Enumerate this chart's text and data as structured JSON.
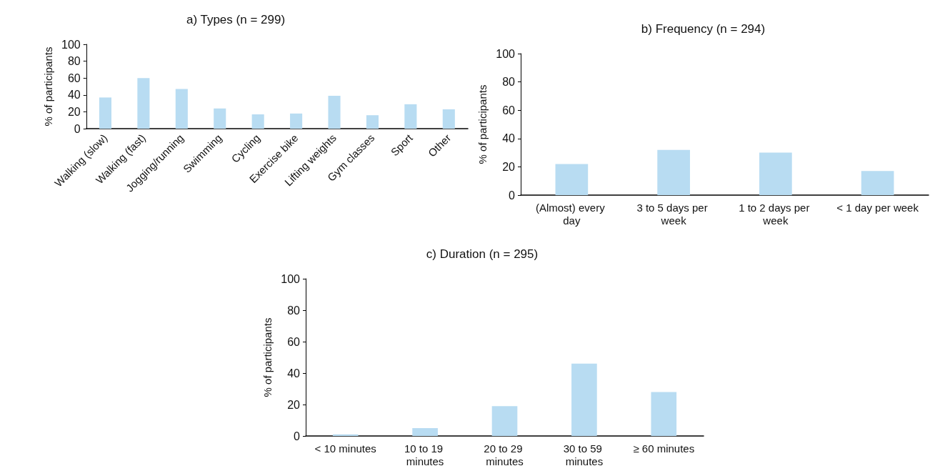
{
  "chart_data": [
    {
      "type": "bar",
      "title": "a) Types (n = 299)",
      "ylabel": "% of participants",
      "categories": [
        "Walking (slow)",
        "Walking (fast)",
        "Jogging/running",
        "Swimming",
        "Cycling",
        "Exercise bike",
        "Lifting weights",
        "Gym classes",
        "Sport",
        "Other"
      ],
      "values": [
        37,
        60,
        47,
        24,
        17,
        18,
        39,
        16,
        29,
        23
      ],
      "color": "#b8dcf2",
      "ylim": [
        0,
        100
      ],
      "yticks": [
        0,
        20,
        40,
        60,
        80,
        100
      ],
      "grid": false
    },
    {
      "type": "bar",
      "title": "b) Frequency (n = 294)",
      "ylabel": "% of participants",
      "categories": [
        "(Almost) every day",
        "3 to 5 days per week",
        "1 to 2 days per week",
        "< 1 day per week"
      ],
      "values": [
        22,
        32,
        30,
        17
      ],
      "color": "#b8dcf2",
      "ylim": [
        0,
        100
      ],
      "yticks": [
        0,
        20,
        40,
        60,
        80,
        100
      ],
      "grid": false
    },
    {
      "type": "bar",
      "title": "c) Duration (n = 295)",
      "ylabel": "% of participants",
      "categories": [
        "< 10 minutes",
        "10 to 19 minutes",
        "20 to 29 minutes",
        "30 to 59 minutes",
        "≥ 60 minutes"
      ],
      "values": [
        1,
        5,
        19,
        46,
        28
      ],
      "color": "#b8dcf2",
      "ylim": [
        0,
        100
      ],
      "yticks": [
        0,
        20,
        40,
        60,
        80,
        100
      ],
      "grid": false
    }
  ]
}
